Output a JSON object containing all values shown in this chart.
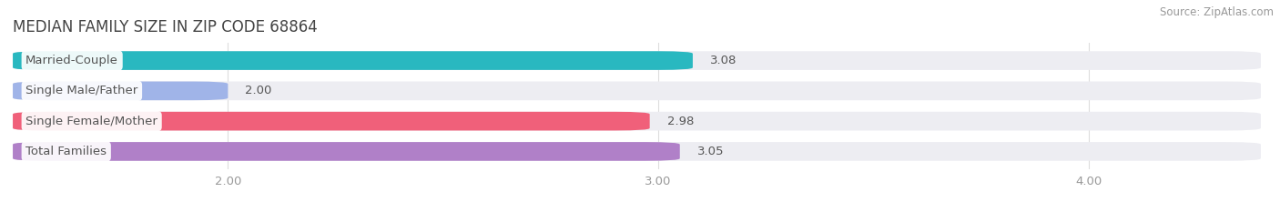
{
  "title": "MEDIAN FAMILY SIZE IN ZIP CODE 68864",
  "source": "Source: ZipAtlas.com",
  "categories": [
    "Married-Couple",
    "Single Male/Father",
    "Single Female/Mother",
    "Total Families"
  ],
  "values": [
    3.08,
    2.0,
    2.98,
    3.05
  ],
  "bar_colors": [
    "#29b8c0",
    "#a0b4e8",
    "#f0607a",
    "#b080c8"
  ],
  "xlim_left": 1.5,
  "xlim_right": 4.4,
  "xmin": 0.0,
  "xticks": [
    2.0,
    3.0,
    4.0
  ],
  "xtick_labels": [
    "2.00",
    "3.00",
    "4.00"
  ],
  "background_color": "#ffffff",
  "bar_bg_color": "#ededf2",
  "label_fontsize": 9.5,
  "value_fontsize": 9.5,
  "title_fontsize": 12,
  "source_fontsize": 8.5,
  "bar_height": 0.62,
  "label_text_color": "#555555",
  "title_color": "#444444",
  "source_color": "#999999",
  "tick_color": "#999999",
  "grid_color": "#dddddd"
}
